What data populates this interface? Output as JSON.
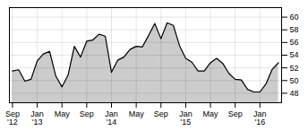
{
  "chart_data": {
    "type": "area",
    "categories": [
      "Sep\n'12",
      null,
      null,
      null,
      "Jan\n'13",
      null,
      null,
      null,
      "May",
      null,
      null,
      null,
      "Sep",
      null,
      null,
      null,
      "Jan\n'14",
      null,
      null,
      null,
      "May",
      null,
      null,
      null,
      "Sep",
      null,
      null,
      null,
      "Jan\n'15",
      null,
      null,
      null,
      "May",
      null,
      null,
      null,
      "Sep",
      null,
      null,
      null,
      "Jan\n'16",
      null,
      null,
      null
    ],
    "values": [
      51.5,
      51.7,
      49.9,
      50.2,
      53.1,
      54.2,
      54.6,
      50.7,
      49.0,
      50.9,
      55.4,
      53.7,
      56.2,
      56.4,
      57.3,
      57.0,
      51.3,
      53.2,
      53.7,
      54.9,
      55.4,
      55.3,
      57.1,
      59.0,
      56.6,
      59.1,
      58.7,
      55.5,
      53.5,
      52.9,
      51.5,
      51.5,
      52.8,
      53.5,
      52.7,
      51.1,
      50.2,
      50.1,
      48.6,
      48.2,
      48.2,
      49.5,
      51.8,
      52.8
    ],
    "ylim": [
      46.5,
      61.5
    ],
    "yticks": [
      48,
      50,
      52,
      54,
      56,
      58,
      60
    ],
    "grid": true
  }
}
